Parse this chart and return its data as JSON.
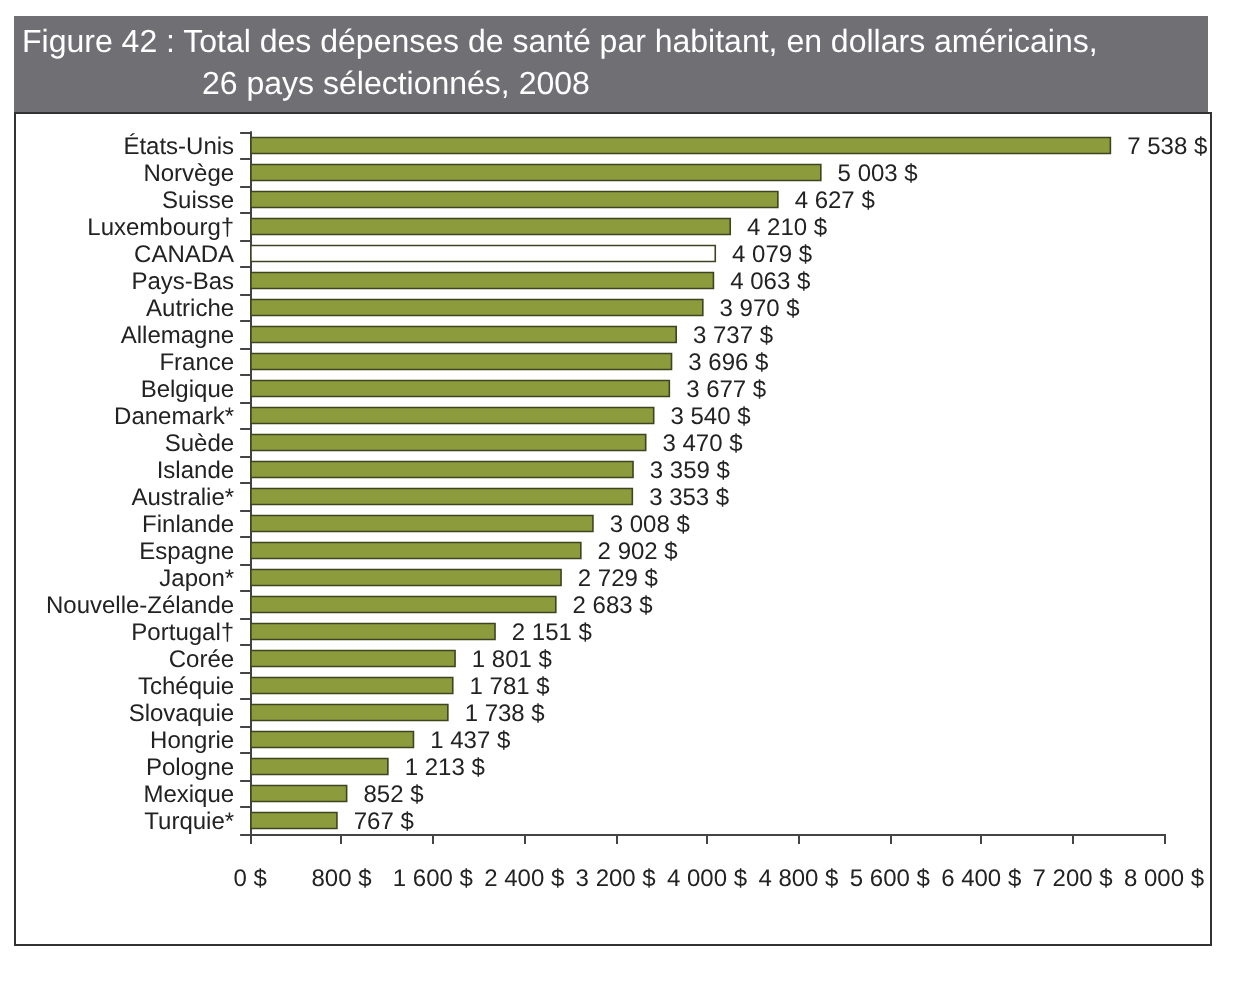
{
  "chart_data": {
    "type": "bar",
    "orientation": "horizontal",
    "title": "Figure 42 : Total des dépenses de santé par habitant, en dollars américains, 26 pays sélectionnés, 2008",
    "categories": [
      "États-Unis",
      "Norvège",
      "Suisse",
      "Luxembourg†",
      "CANADA",
      "Pays-Bas",
      "Autriche",
      "Allemagne",
      "France",
      "Belgique",
      "Danemark*",
      "Suède",
      "Islande",
      "Australie*",
      "Finlande",
      "Espagne",
      "Japon*",
      "Nouvelle-Zélande",
      "Portugal†",
      "Corée",
      "Tchéquie",
      "Slovaquie",
      "Hongrie",
      "Pologne",
      "Mexique",
      "Turquie*"
    ],
    "values": [
      7538,
      5003,
      4627,
      4210,
      4079,
      4063,
      3970,
      3737,
      3696,
      3677,
      3540,
      3470,
      3359,
      3353,
      3008,
      2902,
      2729,
      2683,
      2151,
      1801,
      1781,
      1738,
      1437,
      1213,
      852,
      767
    ],
    "value_labels": [
      "7 538 $",
      "5 003 $",
      "4 627 $",
      "4 210 $",
      "4 079 $",
      "4 063 $",
      "3 970 $",
      "3 737 $",
      "3 696 $",
      "3 677 $",
      "3 540 $",
      "3 470 $",
      "3 359 $",
      "3 353 $",
      "3 008 $",
      "2 902 $",
      "2 729 $",
      "2 683 $",
      "2 151 $",
      "1 801 $",
      "1 781 $",
      "1 738 $",
      "1 437 $",
      "1 213 $",
      "852 $",
      "767 $"
    ],
    "colors": [
      "#8c9c3c",
      "#8c9c3c",
      "#8c9c3c",
      "#8c9c3c",
      "#ffffff",
      "#8c9c3c",
      "#8c9c3c",
      "#8c9c3c",
      "#8c9c3c",
      "#8c9c3c",
      "#8c9c3c",
      "#8c9c3c",
      "#8c9c3c",
      "#8c9c3c",
      "#8c9c3c",
      "#8c9c3c",
      "#8c9c3c",
      "#8c9c3c",
      "#8c9c3c",
      "#8c9c3c",
      "#8c9c3c",
      "#8c9c3c",
      "#8c9c3c",
      "#8c9c3c",
      "#8c9c3c",
      "#8c9c3c"
    ],
    "xlim": [
      0,
      8000
    ],
    "xticks": [
      {
        "value": 0,
        "label": "0 $"
      },
      {
        "value": 800,
        "label": "800 $"
      },
      {
        "value": 1600,
        "label": "1 600 $"
      },
      {
        "value": 2400,
        "label": "2 400 $"
      },
      {
        "value": 3200,
        "label": "3 200 $"
      },
      {
        "value": 4000,
        "label": "4 000 $"
      },
      {
        "value": 4800,
        "label": "4 800 $"
      },
      {
        "value": 5600,
        "label": "5 600 $"
      },
      {
        "value": 6400,
        "label": "6 400 $"
      },
      {
        "value": 7200,
        "label": "7 200 $"
      },
      {
        "value": 8000,
        "label": "8 000 $"
      }
    ],
    "grid": false
  }
}
